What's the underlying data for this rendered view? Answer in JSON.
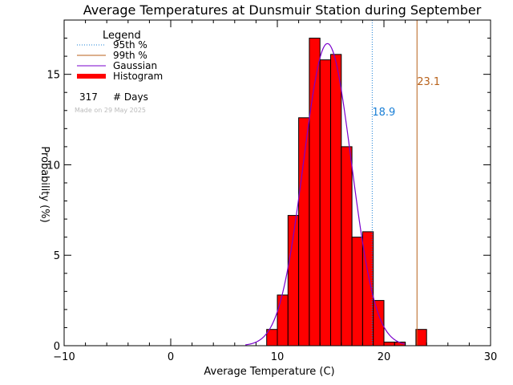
{
  "chart_data": {
    "type": "bar",
    "title": "Average Temperatures at Dunsmuir Station during September",
    "xlabel": "Average Temperature (C)",
    "ylabel": "Probability (%)",
    "xlim": [
      -10,
      30
    ],
    "ylim": [
      0,
      18
    ],
    "xticks": [
      -10,
      0,
      10,
      20,
      30
    ],
    "yticks": [
      0,
      5,
      10,
      15
    ],
    "grid": false,
    "bin_width": 1,
    "bins": [
      {
        "x": 9,
        "value": 0.9
      },
      {
        "x": 10,
        "value": 2.8
      },
      {
        "x": 11,
        "value": 7.2
      },
      {
        "x": 12,
        "value": 12.6
      },
      {
        "x": 13,
        "value": 17.0
      },
      {
        "x": 14,
        "value": 15.8
      },
      {
        "x": 15,
        "value": 16.1
      },
      {
        "x": 16,
        "value": 11.0
      },
      {
        "x": 17,
        "value": 6.0
      },
      {
        "x": 18,
        "value": 6.3
      },
      {
        "x": 19,
        "value": 2.5
      },
      {
        "x": 20,
        "value": 0.2
      },
      {
        "x": 21,
        "value": 0.2
      },
      {
        "x": 23,
        "value": 0.9
      }
    ],
    "gaussian": {
      "mean": 14.7,
      "sigma": 2.25,
      "peak": 16.7,
      "range": [
        7,
        22
      ]
    },
    "percentile_lines": [
      {
        "name": "95th %",
        "value": 18.9,
        "label": "18.9",
        "color": "#1a7fd6"
      },
      {
        "name": "99th %",
        "value": 23.1,
        "label": "23.1",
        "color": "#b8621b"
      }
    ],
    "legend": {
      "title": "Legend",
      "placement": "top-left",
      "entries": [
        {
          "label": "95th %",
          "kind": "dotted",
          "color": "#1a7fd6"
        },
        {
          "label": "99th %",
          "kind": "line",
          "color": "#b8621b"
        },
        {
          "label": "Gaussian",
          "kind": "line",
          "color": "#7a00cc"
        },
        {
          "label": "Histogram",
          "kind": "thick",
          "color": "#ff0000"
        }
      ],
      "days_count": "317",
      "days_label": "# Days",
      "made_on": "Made on 29 May 2025"
    },
    "colors": {
      "histogram_fill": "#ff0000",
      "histogram_edge": "#000000",
      "gaussian": "#7a00cc",
      "axis": "#000000"
    }
  }
}
